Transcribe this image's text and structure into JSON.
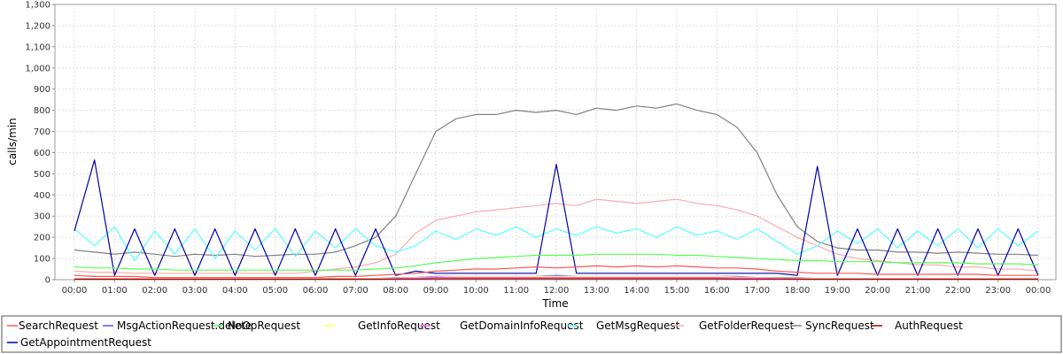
{
  "chart_data": {
    "type": "line",
    "title": "",
    "xlabel": "Time",
    "ylabel": "calls/min",
    "xlim": [
      "00:00",
      "24:00"
    ],
    "ylim": [
      0,
      1300
    ],
    "grid": true,
    "legend_position": "bottom",
    "x_ticks": [
      "00:00",
      "01:00",
      "02:00",
      "03:00",
      "04:00",
      "05:00",
      "06:00",
      "07:00",
      "08:00",
      "09:00",
      "10:00",
      "11:00",
      "12:00",
      "13:00",
      "14:00",
      "15:00",
      "16:00",
      "17:00",
      "18:00",
      "19:00",
      "20:00",
      "21:00",
      "22:00",
      "23:00",
      "00:00"
    ],
    "y_ticks": [
      "0",
      "100",
      "200",
      "300",
      "400",
      "500",
      "600",
      "700",
      "800",
      "900",
      "1,000",
      "1,100",
      "1,200",
      "1,300"
    ],
    "x": [
      "00:00",
      "00:30",
      "01:00",
      "01:30",
      "02:00",
      "02:30",
      "03:00",
      "03:30",
      "04:00",
      "04:30",
      "05:00",
      "05:30",
      "06:00",
      "06:30",
      "07:00",
      "07:30",
      "08:00",
      "08:30",
      "09:00",
      "09:30",
      "10:00",
      "10:30",
      "11:00",
      "11:30",
      "12:00",
      "12:30",
      "13:00",
      "13:30",
      "14:00",
      "14:30",
      "15:00",
      "15:30",
      "16:00",
      "16:30",
      "17:00",
      "17:30",
      "18:00",
      "18:30",
      "19:00",
      "19:30",
      "20:00",
      "20:30",
      "21:00",
      "21:30",
      "22:00",
      "22:30",
      "23:00",
      "23:30",
      "24:00"
    ],
    "series": [
      {
        "name": "SearchRequest",
        "color": "#ff5555",
        "values": [
          20,
          15,
          15,
          15,
          10,
          10,
          10,
          10,
          10,
          10,
          10,
          10,
          10,
          15,
          15,
          20,
          25,
          30,
          40,
          45,
          50,
          50,
          55,
          60,
          55,
          60,
          65,
          60,
          65,
          60,
          65,
          60,
          55,
          55,
          50,
          40,
          35,
          30,
          30,
          30,
          25,
          25,
          25,
          25,
          25,
          25,
          20,
          20,
          20
        ]
      },
      {
        "name": "MsgActionRequest.delete",
        "color": "#5555ff",
        "values": [
          5,
          5,
          5,
          5,
          5,
          5,
          5,
          5,
          5,
          5,
          5,
          5,
          5,
          5,
          5,
          5,
          10,
          10,
          15,
          15,
          15,
          15,
          15,
          15,
          20,
          15,
          15,
          15,
          15,
          15,
          15,
          15,
          15,
          15,
          10,
          10,
          10,
          5,
          5,
          5,
          5,
          5,
          5,
          5,
          5,
          5,
          5,
          5,
          5
        ]
      },
      {
        "name": "NoOpRequest",
        "color": "#55ff55",
        "values": [
          60,
          55,
          55,
          50,
          50,
          45,
          45,
          45,
          45,
          45,
          45,
          45,
          45,
          45,
          45,
          50,
          55,
          65,
          80,
          90,
          100,
          105,
          110,
          115,
          115,
          115,
          120,
          120,
          120,
          120,
          115,
          115,
          110,
          105,
          100,
          95,
          90,
          90,
          85,
          85,
          85,
          80,
          80,
          80,
          80,
          75,
          75,
          75,
          70
        ]
      },
      {
        "name": "GetInfoRequest",
        "color": "#ffff55",
        "values": [
          5,
          5,
          5,
          5,
          5,
          5,
          5,
          5,
          5,
          5,
          5,
          5,
          5,
          5,
          5,
          5,
          8,
          10,
          12,
          15,
          15,
          15,
          15,
          15,
          15,
          15,
          15,
          15,
          15,
          15,
          15,
          15,
          15,
          12,
          10,
          8,
          8,
          5,
          5,
          5,
          5,
          5,
          5,
          5,
          5,
          5,
          5,
          5,
          5
        ]
      },
      {
        "name": "GetDomainInfoRequest",
        "color": "#ff55ff",
        "values": [
          3,
          3,
          3,
          3,
          3,
          3,
          3,
          3,
          3,
          3,
          3,
          3,
          3,
          3,
          3,
          3,
          5,
          8,
          10,
          10,
          10,
          10,
          10,
          10,
          10,
          10,
          10,
          10,
          10,
          10,
          10,
          10,
          10,
          8,
          8,
          5,
          5,
          3,
          3,
          3,
          3,
          3,
          3,
          3,
          3,
          3,
          3,
          3,
          3
        ]
      },
      {
        "name": "GetMsgRequest",
        "color": "#55ffff",
        "values": [
          240,
          160,
          250,
          90,
          230,
          120,
          240,
          100,
          230,
          140,
          240,
          110,
          230,
          150,
          240,
          160,
          130,
          160,
          230,
          190,
          240,
          210,
          250,
          200,
          240,
          210,
          250,
          220,
          240,
          200,
          250,
          210,
          230,
          190,
          240,
          180,
          120,
          160,
          230,
          170,
          240,
          150,
          230,
          160,
          240,
          150,
          240,
          160,
          230
        ]
      },
      {
        "name": "GetFolderRequest",
        "color": "#ffaaaa",
        "values": [
          40,
          35,
          35,
          30,
          30,
          30,
          30,
          30,
          30,
          30,
          30,
          30,
          40,
          50,
          60,
          80,
          120,
          220,
          280,
          300,
          320,
          330,
          340,
          350,
          360,
          350,
          380,
          370,
          360,
          370,
          380,
          360,
          350,
          330,
          300,
          250,
          200,
          160,
          120,
          100,
          90,
          80,
          70,
          70,
          60,
          60,
          50,
          50,
          40
        ]
      },
      {
        "name": "SyncRequest",
        "color": "#808080",
        "values": [
          140,
          130,
          120,
          130,
          120,
          110,
          120,
          115,
          120,
          110,
          115,
          120,
          120,
          130,
          160,
          200,
          300,
          500,
          700,
          760,
          780,
          780,
          800,
          790,
          800,
          780,
          810,
          800,
          820,
          810,
          830,
          800,
          780,
          720,
          600,
          400,
          250,
          180,
          150,
          140,
          140,
          130,
          130,
          125,
          130,
          125,
          120,
          120,
          115
        ]
      },
      {
        "name": "AuthRequest",
        "color": "#aa0000",
        "values": [
          2,
          2,
          2,
          2,
          2,
          2,
          2,
          2,
          2,
          2,
          2,
          2,
          2,
          2,
          2,
          2,
          3,
          3,
          4,
          4,
          4,
          4,
          4,
          4,
          4,
          4,
          4,
          4,
          4,
          4,
          4,
          4,
          4,
          3,
          3,
          3,
          2,
          2,
          2,
          2,
          2,
          2,
          2,
          2,
          2,
          2,
          2,
          2,
          2
        ]
      },
      {
        "name": "GetAppointmentRequest",
        "color": "#0000aa",
        "values": [
          230,
          565,
          20,
          240,
          20,
          240,
          20,
          240,
          20,
          240,
          20,
          240,
          20,
          240,
          20,
          240,
          20,
          40,
          30,
          30,
          30,
          30,
          30,
          30,
          545,
          30,
          30,
          30,
          30,
          30,
          30,
          30,
          30,
          30,
          30,
          30,
          20,
          535,
          20,
          240,
          20,
          240,
          20,
          240,
          20,
          240,
          20,
          240,
          20
        ]
      }
    ]
  }
}
